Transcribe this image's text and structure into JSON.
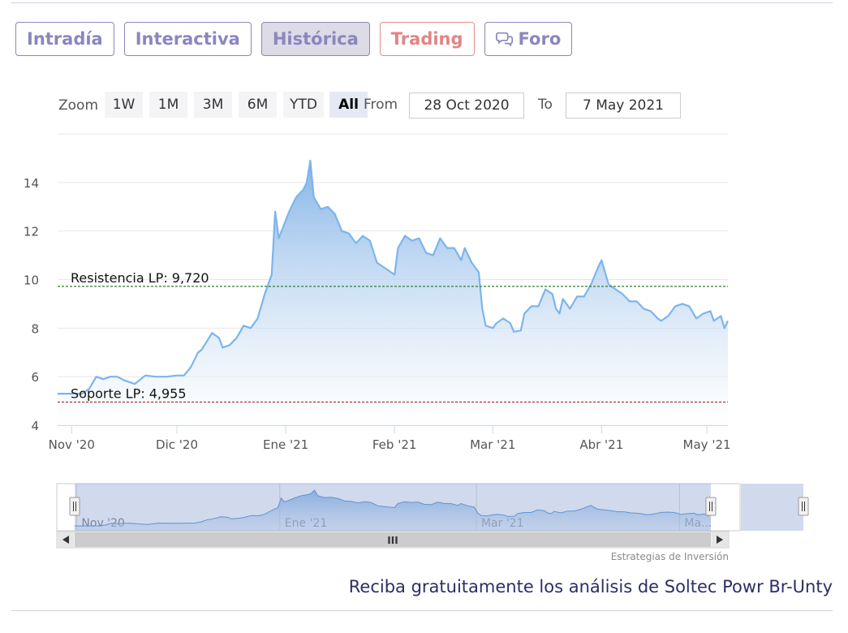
{
  "tabs": [
    {
      "label": "Intradía",
      "state": "normal"
    },
    {
      "label": "Interactiva",
      "state": "normal"
    },
    {
      "label": "Histórica",
      "state": "active"
    },
    {
      "label": "Trading",
      "state": "trading"
    },
    {
      "label": "Foro",
      "state": "normal",
      "icon": "chat-bubbles-icon"
    }
  ],
  "range_selector": {
    "zoom_label": "Zoom",
    "buttons": [
      "1W",
      "1M",
      "3M",
      "6M",
      "YTD",
      "All"
    ],
    "selected": "All",
    "from_label": "From",
    "from_value": "28 Oct 2020",
    "to_label": "To",
    "to_value": "7 May 2021"
  },
  "chart_data": {
    "type": "area",
    "title": "",
    "xlabel": "",
    "ylabel": "",
    "x_range": [
      "2020-10-28",
      "2021-05-07"
    ],
    "ylim": [
      4,
      16
    ],
    "y_ticks": [
      4,
      6,
      8,
      10,
      12,
      14
    ],
    "x_ticks": [
      {
        "date": "2020-11-01",
        "label": "Nov '20"
      },
      {
        "date": "2020-12-01",
        "label": "Dic '20"
      },
      {
        "date": "2021-01-01",
        "label": "Ene '21"
      },
      {
        "date": "2021-02-01",
        "label": "Feb '21"
      },
      {
        "date": "2021-03-01",
        "label": "Mar '21"
      },
      {
        "date": "2021-04-01",
        "label": "Abr '21"
      },
      {
        "date": "2021-05-01",
        "label": "May '21"
      }
    ],
    "grid": true,
    "colors": {
      "line": "#7cb5ec",
      "area_top": "#8fbbea",
      "support": "#a52a2a",
      "resistance": "#2e7d32"
    },
    "series": [
      {
        "name": "",
        "points": [
          [
            "2020-10-28",
            5.3
          ],
          [
            "2020-10-31",
            5.3
          ],
          [
            "2020-11-04",
            5.3
          ],
          [
            "2020-11-06",
            5.5
          ],
          [
            "2020-11-08",
            6.0
          ],
          [
            "2020-11-10",
            5.9
          ],
          [
            "2020-11-12",
            6.0
          ],
          [
            "2020-11-14",
            6.0
          ],
          [
            "2020-11-16",
            5.85
          ],
          [
            "2020-11-19",
            5.7
          ],
          [
            "2020-11-22",
            6.05
          ],
          [
            "2020-11-25",
            6.0
          ],
          [
            "2020-11-28",
            6.0
          ],
          [
            "2020-12-01",
            6.05
          ],
          [
            "2020-12-03",
            6.05
          ],
          [
            "2020-12-05",
            6.4
          ],
          [
            "2020-12-07",
            7.0
          ],
          [
            "2020-12-08",
            7.1
          ],
          [
            "2020-12-11",
            7.8
          ],
          [
            "2020-12-13",
            7.6
          ],
          [
            "2020-12-14",
            7.2
          ],
          [
            "2020-12-16",
            7.3
          ],
          [
            "2020-12-18",
            7.6
          ],
          [
            "2020-12-20",
            8.1
          ],
          [
            "2020-12-22",
            8.0
          ],
          [
            "2020-12-24",
            8.4
          ],
          [
            "2020-12-26",
            9.4
          ],
          [
            "2020-12-28",
            10.2
          ],
          [
            "2020-12-29",
            12.8
          ],
          [
            "2020-12-30",
            11.7
          ],
          [
            "2021-01-02",
            12.8
          ],
          [
            "2021-01-04",
            13.4
          ],
          [
            "2021-01-06",
            13.7
          ],
          [
            "2021-01-07",
            14.0
          ],
          [
            "2021-01-08",
            14.9
          ],
          [
            "2021-01-09",
            13.4
          ],
          [
            "2021-01-11",
            12.9
          ],
          [
            "2021-01-13",
            13.0
          ],
          [
            "2021-01-15",
            12.7
          ],
          [
            "2021-01-17",
            12.0
          ],
          [
            "2021-01-19",
            11.9
          ],
          [
            "2021-01-21",
            11.5
          ],
          [
            "2021-01-23",
            11.8
          ],
          [
            "2021-01-25",
            11.6
          ],
          [
            "2021-01-27",
            10.7
          ],
          [
            "2021-01-29",
            10.5
          ],
          [
            "2021-02-01",
            10.2
          ],
          [
            "2021-02-02",
            11.3
          ],
          [
            "2021-02-04",
            11.8
          ],
          [
            "2021-02-06",
            11.6
          ],
          [
            "2021-02-08",
            11.7
          ],
          [
            "2021-02-10",
            11.1
          ],
          [
            "2021-02-12",
            11.0
          ],
          [
            "2021-02-14",
            11.7
          ],
          [
            "2021-02-16",
            11.3
          ],
          [
            "2021-02-18",
            11.3
          ],
          [
            "2021-02-20",
            10.8
          ],
          [
            "2021-02-21",
            11.3
          ],
          [
            "2021-02-23",
            10.7
          ],
          [
            "2021-02-25",
            10.3
          ],
          [
            "2021-02-26",
            8.8
          ],
          [
            "2021-02-27",
            8.1
          ],
          [
            "2021-03-01",
            8.0
          ],
          [
            "2021-03-02",
            8.2
          ],
          [
            "2021-03-04",
            8.4
          ],
          [
            "2021-03-06",
            8.2
          ],
          [
            "2021-03-07",
            7.85
          ],
          [
            "2021-03-09",
            7.9
          ],
          [
            "2021-03-10",
            8.6
          ],
          [
            "2021-03-12",
            8.9
          ],
          [
            "2021-03-14",
            8.9
          ],
          [
            "2021-03-16",
            9.6
          ],
          [
            "2021-03-18",
            9.4
          ],
          [
            "2021-03-19",
            8.8
          ],
          [
            "2021-03-20",
            8.6
          ],
          [
            "2021-03-21",
            9.2
          ],
          [
            "2021-03-23",
            8.8
          ],
          [
            "2021-03-25",
            9.3
          ],
          [
            "2021-03-27",
            9.3
          ],
          [
            "2021-03-29",
            9.8
          ],
          [
            "2021-03-31",
            10.5
          ],
          [
            "2021-04-01",
            10.8
          ],
          [
            "2021-04-03",
            9.8
          ],
          [
            "2021-04-05",
            9.6
          ],
          [
            "2021-04-07",
            9.4
          ],
          [
            "2021-04-09",
            9.1
          ],
          [
            "2021-04-11",
            9.1
          ],
          [
            "2021-04-13",
            8.8
          ],
          [
            "2021-04-15",
            8.7
          ],
          [
            "2021-04-17",
            8.4
          ],
          [
            "2021-04-18",
            8.3
          ],
          [
            "2021-04-20",
            8.5
          ],
          [
            "2021-04-22",
            8.9
          ],
          [
            "2021-04-24",
            9.0
          ],
          [
            "2021-04-26",
            8.9
          ],
          [
            "2021-04-28",
            8.4
          ],
          [
            "2021-04-30",
            8.6
          ],
          [
            "2021-05-02",
            8.7
          ],
          [
            "2021-05-03",
            8.3
          ],
          [
            "2021-05-05",
            8.5
          ],
          [
            "2021-05-06",
            8.0
          ],
          [
            "2021-05-07",
            8.3
          ]
        ]
      }
    ],
    "horizontal_lines": [
      {
        "label": "Resistencia LP: 9,720",
        "value": 9.72,
        "color": "#2e7d32"
      },
      {
        "label": "Soporte LP: 4,955",
        "value": 4.955,
        "color": "#a52a2a"
      }
    ]
  },
  "navigator": {
    "tick_labels": [
      {
        "date": "2020-11-01",
        "label": "Nov '20"
      },
      {
        "date": "2021-01-01",
        "label": "Ene '21"
      },
      {
        "date": "2021-03-01",
        "label": "Mar '21"
      },
      {
        "date": "2021-05-01",
        "label": "Ma..."
      }
    ],
    "scrollbar_grip": "III"
  },
  "credits": "Estrategias de Inversión",
  "cta": "Reciba gratuitamente los análisis de Soltec Powr Br-Unty"
}
